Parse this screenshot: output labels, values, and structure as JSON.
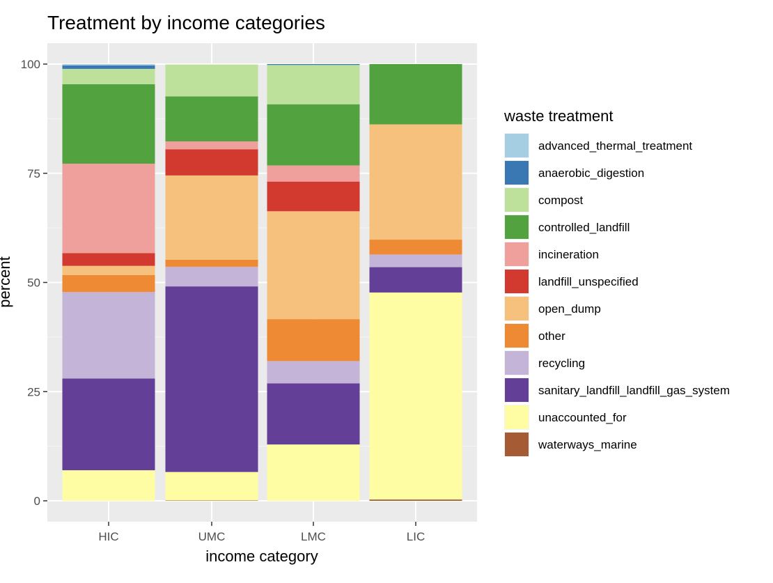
{
  "chart_data": {
    "type": "bar",
    "stacked": true,
    "title": "Treatment by income categories",
    "xlabel": "income category",
    "ylabel": "percent",
    "ylim": [
      0,
      100
    ],
    "yticks": [
      0,
      25,
      50,
      75,
      100
    ],
    "grid": true,
    "legend_position": "right",
    "legend_title": "waste treatment",
    "categories": [
      "HIC",
      "UMC",
      "LMC",
      "LIC"
    ],
    "series": [
      {
        "name": "advanced_thermal_treatment",
        "color": "#A6CEE3",
        "values": [
          0.3,
          0.0,
          0.0,
          0.0
        ]
      },
      {
        "name": "anaerobic_digestion",
        "color": "#3A78B4",
        "values": [
          0.8,
          0.0,
          0.2,
          0.0
        ]
      },
      {
        "name": "compost",
        "color": "#BDE09A",
        "values": [
          3.5,
          7.3,
          9.0,
          0.0
        ]
      },
      {
        "name": "controlled_landfill",
        "color": "#52A23F",
        "values": [
          18.2,
          10.3,
          14.0,
          13.8
        ]
      },
      {
        "name": "incineration",
        "color": "#EF9F9C",
        "values": [
          20.5,
          1.8,
          3.7,
          0.0
        ]
      },
      {
        "name": "landfill_unspecified",
        "color": "#D23A2F",
        "values": [
          2.9,
          6.0,
          6.8,
          0.0
        ]
      },
      {
        "name": "open_dump",
        "color": "#F5C17C",
        "values": [
          2.1,
          19.3,
          24.7,
          26.4
        ]
      },
      {
        "name": "other",
        "color": "#EF8A34",
        "values": [
          3.9,
          1.6,
          9.6,
          3.4
        ]
      },
      {
        "name": "recycling",
        "color": "#C4B4D7",
        "values": [
          19.8,
          4.5,
          5.1,
          2.9
        ]
      },
      {
        "name": "sanitary_landfill_landfill_gas_system",
        "color": "#643F97",
        "values": [
          21.0,
          42.5,
          14.0,
          5.8
        ]
      },
      {
        "name": "unaccounted_for",
        "color": "#FFFDA4",
        "values": [
          7.0,
          6.5,
          12.9,
          47.4
        ]
      },
      {
        "name": "waterways_marine",
        "color": "#A55B34",
        "values": [
          0.0,
          0.1,
          0.0,
          0.3
        ]
      }
    ]
  }
}
